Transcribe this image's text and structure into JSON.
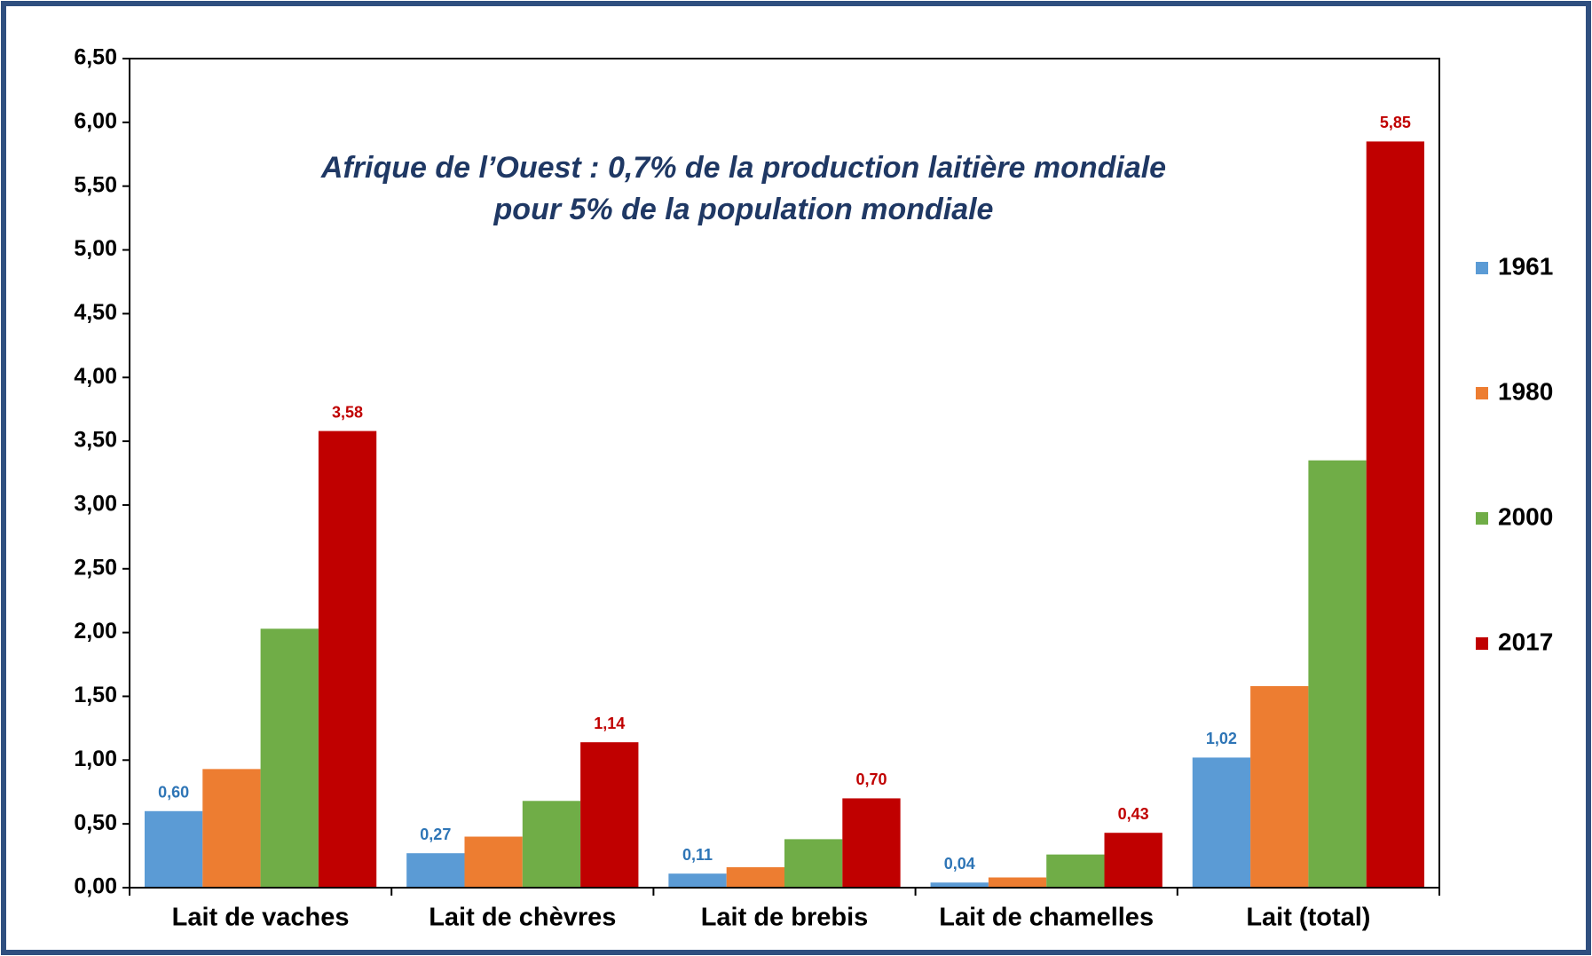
{
  "chart_data": {
    "type": "bar",
    "title_lines": [
      "Afrique de l’Ouest : 0,7% de la production laitière mondiale",
      "pour 5% de la population mondiale"
    ],
    "categories": [
      "Lait de vaches",
      "Lait de chèvres",
      "Lait de brebis",
      "Lait de chamelles",
      "Lait (total)"
    ],
    "series": [
      {
        "name": "1961",
        "color": "#5b9bd5",
        "label_color": "#2e75b6",
        "values": [
          0.6,
          0.27,
          0.11,
          0.04,
          1.02
        ],
        "value_labels": [
          "0,60",
          "0,27",
          "0,11",
          "0,04",
          "1,02"
        ]
      },
      {
        "name": "1980",
        "color": "#ed7d31",
        "values": [
          0.93,
          0.4,
          0.16,
          0.08,
          1.58
        ]
      },
      {
        "name": "2000",
        "color": "#70ad47",
        "values": [
          2.03,
          0.68,
          0.38,
          0.26,
          3.35
        ]
      },
      {
        "name": "2017",
        "color": "#c00000",
        "label_color": "#c00000",
        "values": [
          3.58,
          1.14,
          0.7,
          0.43,
          5.85
        ],
        "value_labels": [
          "3,58",
          "1,14",
          "0,70",
          "0,43",
          "5,85"
        ]
      }
    ],
    "ylim": [
      0,
      6.5
    ],
    "yticks": [
      {
        "value": 0,
        "label": "0,00"
      },
      {
        "value": 0.5,
        "label": "0,50"
      },
      {
        "value": 1,
        "label": "1,00"
      },
      {
        "value": 1.5,
        "label": "1,50"
      },
      {
        "value": 2,
        "label": "2,00"
      },
      {
        "value": 2.5,
        "label": "2,50"
      },
      {
        "value": 3,
        "label": "3,00"
      },
      {
        "value": 3.5,
        "label": "3,50"
      },
      {
        "value": 4,
        "label": "4,00"
      },
      {
        "value": 4.5,
        "label": "4,50"
      },
      {
        "value": 5,
        "label": "5,00"
      },
      {
        "value": 5.5,
        "label": "5,50"
      },
      {
        "value": 6,
        "label": "6,00"
      },
      {
        "value": 6.5,
        "label": "6,50"
      }
    ],
    "grid": false,
    "legend": "right"
  }
}
